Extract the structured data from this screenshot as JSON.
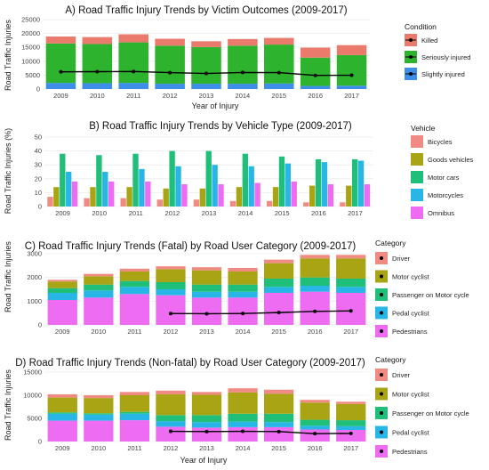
{
  "chart_data": [
    {
      "type": "bar",
      "stacked": true,
      "title": "A) Road Traffic Injury Trends by Victim Outcomes (2009-2017)",
      "xlabel": "Year of Injury",
      "ylabel": "Road Traffic Injuries",
      "categories": [
        "2009",
        "2010",
        "2011",
        "2012",
        "2013",
        "2014",
        "2015",
        "2016",
        "2017"
      ],
      "ylim": [
        0,
        25000
      ],
      "yticks": [
        "0",
        "5000",
        "10000",
        "15000",
        "20000",
        "25000"
      ],
      "legend_title": "Condition",
      "legend_position": "right",
      "series": [
        {
          "name": "Slightly injured",
          "color": "#3d8ee8",
          "values": [
            2200,
            2100,
            2200,
            1900,
            1900,
            1900,
            2000,
            1100,
            1200
          ]
        },
        {
          "name": "Seriously injured",
          "color": "#2db32d",
          "values": [
            14200,
            14100,
            14600,
            13700,
            13200,
            13700,
            14000,
            10200,
            11000
          ]
        },
        {
          "name": "Killed",
          "color": "#ea7a6c",
          "values": [
            2500,
            2500,
            2900,
            2500,
            2100,
            2400,
            2400,
            3600,
            3600
          ]
        }
      ],
      "line": {
        "name": "Killed",
        "color": "#000000",
        "values": [
          6200,
          6250,
          6300,
          5900,
          5600,
          5950,
          5900,
          4900,
          4950
        ]
      }
    },
    {
      "type": "bar",
      "grouped": true,
      "title": "B) Road Traffic Injury Trends by Vehicle Type (2009-2017)",
      "xlabel": "",
      "ylabel": "Road Traffic Injuries (%)",
      "categories": [
        "2009",
        "2010",
        "2011",
        "2012",
        "2013",
        "2014",
        "2015",
        "2016",
        "2017"
      ],
      "ylim": [
        0,
        50
      ],
      "yticks": [
        "0",
        "10",
        "20",
        "30",
        "40",
        "50"
      ],
      "legend_title": "Vehicle",
      "legend_position": "right",
      "series": [
        {
          "name": "Bicycles",
          "color": "#f08b83",
          "values": [
            7,
            6,
            6,
            5,
            5,
            4,
            4,
            3,
            3
          ]
        },
        {
          "name": "Goods vehicles",
          "color": "#a8a414",
          "values": [
            14,
            14,
            14,
            13,
            13,
            14,
            14,
            15,
            15
          ]
        },
        {
          "name": "Motor cars",
          "color": "#1fbf7a",
          "values": [
            38,
            37,
            38,
            40,
            40,
            38,
            36,
            34,
            34
          ]
        },
        {
          "name": "Motorcycles",
          "color": "#28b6e6",
          "values": [
            25,
            25,
            27,
            29,
            30,
            29,
            31,
            32,
            33
          ]
        },
        {
          "name": "Omnibus",
          "color": "#ee6cf2",
          "values": [
            18,
            18,
            18,
            16,
            16,
            17,
            18,
            16,
            16
          ]
        }
      ]
    },
    {
      "type": "bar",
      "stacked": true,
      "title": "C) Road Traffic Injury Trends (Fatal) by Road User Category (2009-2017)",
      "xlabel": "",
      "ylabel": "Road Traffic Injuries",
      "categories": [
        "2009",
        "2010",
        "2011",
        "2012",
        "2013",
        "2014",
        "2015",
        "2016",
        "2017"
      ],
      "ylim": [
        0,
        3000
      ],
      "yticks": [
        "0",
        "1000",
        "2000",
        "3000"
      ],
      "legend_title": "Category",
      "legend_position": "right",
      "series": [
        {
          "name": "Pedestrians",
          "color": "#ee6cf2",
          "values": [
            1050,
            1150,
            1300,
            1250,
            1150,
            1150,
            1350,
            1400,
            1350
          ]
        },
        {
          "name": "Pedal cyclist",
          "color": "#28b6e6",
          "values": [
            300,
            300,
            300,
            250,
            250,
            250,
            250,
            250,
            250
          ]
        },
        {
          "name": "Passenger on Motor cycle",
          "color": "#1fbf7a",
          "values": [
            200,
            250,
            250,
            300,
            300,
            300,
            350,
            350,
            350
          ]
        },
        {
          "name": "Motor cyclist",
          "color": "#a8a414",
          "values": [
            280,
            350,
            400,
            550,
            600,
            550,
            650,
            800,
            850
          ]
        },
        {
          "name": "Driver",
          "color": "#f08b83",
          "values": [
            70,
            100,
            120,
            120,
            130,
            150,
            150,
            150,
            150
          ]
        }
      ],
      "line": {
        "name": "",
        "color": "#000000",
        "categories": [
          "2012",
          "2013",
          "2014",
          "2015",
          "2016",
          "2017"
        ],
        "values": [
          480,
          470,
          480,
          520,
          570,
          590
        ]
      }
    },
    {
      "type": "bar",
      "stacked": true,
      "title": "D) Road Traffic Injury Trends (Non-fatal) by Road User Category (2009-2017)",
      "xlabel": "Year of Injury",
      "ylabel": "Road Traffic Injuries",
      "categories": [
        "2009",
        "2010",
        "2011",
        "2012",
        "2013",
        "2014",
        "2015",
        "2016",
        "2017"
      ],
      "ylim": [
        0,
        15000
      ],
      "yticks": [
        "0",
        "5000",
        "10000",
        "15000"
      ],
      "legend_title": "Category",
      "legend_position": "right",
      "series": [
        {
          "name": "Pedestrians",
          "color": "#ee6cf2",
          "values": [
            4500,
            4500,
            4600,
            3200,
            3000,
            3100,
            3100,
            2600,
            2500
          ]
        },
        {
          "name": "Pedal cyclist",
          "color": "#28b6e6",
          "values": [
            1500,
            1300,
            1400,
            1200,
            1200,
            1200,
            1100,
            800,
            800
          ]
        },
        {
          "name": "Passenger on Motor cycle",
          "color": "#1fbf7a",
          "values": [
            300,
            300,
            400,
            1300,
            1500,
            1700,
            1800,
            1300,
            1300
          ]
        },
        {
          "name": "Motor cyclist",
          "color": "#a8a414",
          "values": [
            3200,
            3300,
            3600,
            4500,
            4400,
            4600,
            4300,
            3700,
            3500
          ]
        },
        {
          "name": "Driver",
          "color": "#f08b83",
          "values": [
            700,
            600,
            700,
            800,
            600,
            900,
            900,
            600,
            500
          ]
        }
      ],
      "line": {
        "name": "",
        "color": "#000000",
        "categories": [
          "2012",
          "2013",
          "2014",
          "2015",
          "2016",
          "2017"
        ],
        "values": [
          2200,
          2150,
          2200,
          2150,
          1700,
          1750
        ]
      }
    }
  ]
}
